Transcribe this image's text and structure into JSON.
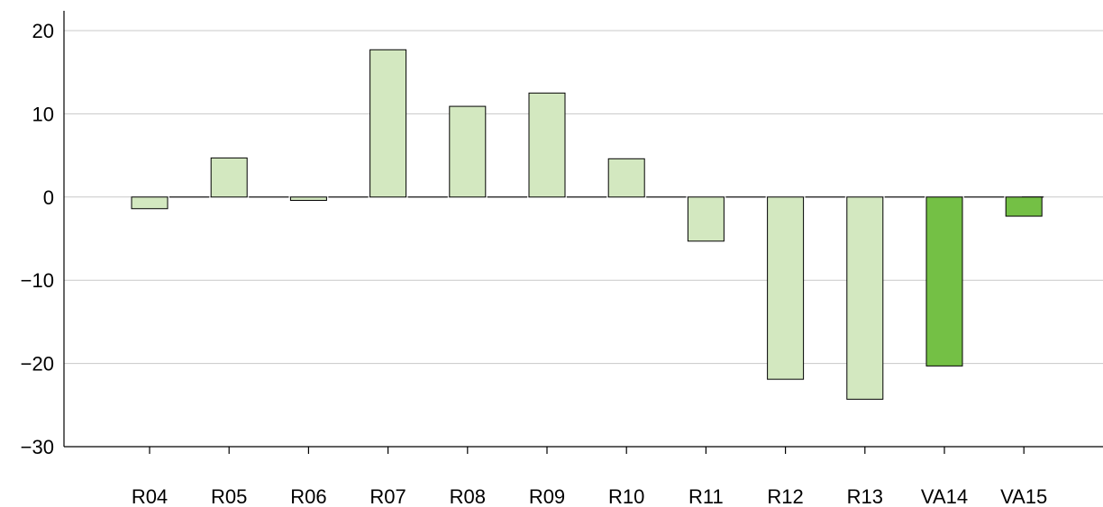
{
  "chart_data": {
    "type": "bar",
    "title": "",
    "xlabel": "",
    "ylabel": "",
    "categories": [
      "R04",
      "R05",
      "R06",
      "R07",
      "R08",
      "R09",
      "R10",
      "R11",
      "R12",
      "R13",
      "VA14",
      "VA15"
    ],
    "values": [
      -1.4,
      4.7,
      -0.4,
      17.7,
      10.9,
      12.5,
      4.6,
      -5.3,
      -21.9,
      -24.3,
      -20.3,
      -2.3
    ],
    "bar_colors": [
      "#d3e8c0",
      "#d3e8c0",
      "#d3e8c0",
      "#d3e8c0",
      "#d3e8c0",
      "#d3e8c0",
      "#d3e8c0",
      "#d3e8c0",
      "#d3e8c0",
      "#d3e8c0",
      "#74c045",
      "#74c045"
    ],
    "ylim": [
      -30,
      20
    ],
    "yticks": [
      20,
      10,
      0,
      -10,
      -20,
      -30
    ],
    "ytick_labels": [
      "20",
      "10",
      "0",
      "−10",
      "−20",
      "−30"
    ],
    "grid": "horizontal",
    "legend": "none"
  }
}
